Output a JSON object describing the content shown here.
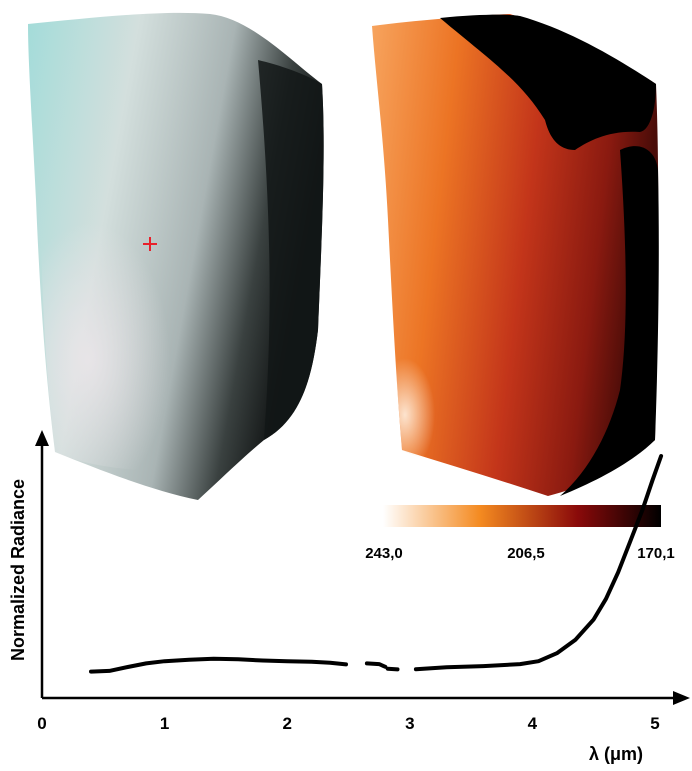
{
  "chart_data": {
    "type": "line",
    "xlabel": "λ (μm)",
    "ylabel": "Normalized Radiance",
    "xlim": [
      0,
      5.2
    ],
    "ylim": [
      0,
      1.0
    ],
    "x_ticks": [
      "0",
      "1",
      "2",
      "3",
      "4",
      "5"
    ],
    "grid": false,
    "series": [
      {
        "segments": [
          [
            [
              0.4,
              0.109
            ],
            [
              0.55,
              0.112
            ],
            [
              0.7,
              0.128
            ],
            [
              0.85,
              0.143
            ],
            [
              1.0,
              0.152
            ],
            [
              1.2,
              0.158
            ],
            [
              1.4,
              0.162
            ],
            [
              1.6,
              0.16
            ],
            [
              1.8,
              0.155
            ],
            [
              2.0,
              0.152
            ],
            [
              2.2,
              0.15
            ],
            [
              2.35,
              0.146
            ],
            [
              2.48,
              0.139
            ]
          ],
          [
            [
              2.65,
              0.143
            ],
            [
              2.75,
              0.14
            ],
            [
              2.8,
              0.129
            ]
          ],
          [
            [
              2.82,
              0.121
            ],
            [
              2.9,
              0.118
            ]
          ],
          [
            [
              3.05,
              0.119
            ],
            [
              3.3,
              0.127
            ],
            [
              3.6,
              0.132
            ],
            [
              3.9,
              0.14
            ],
            [
              4.05,
              0.152
            ],
            [
              4.2,
              0.185
            ],
            [
              4.35,
              0.24
            ],
            [
              4.5,
              0.325
            ],
            [
              4.6,
              0.41
            ],
            [
              4.7,
              0.52
            ],
            [
              4.8,
              0.65
            ],
            [
              4.9,
              0.78
            ],
            [
              4.98,
              0.9
            ],
            [
              5.05,
              1.0
            ]
          ]
        ]
      }
    ],
    "colorbar": {
      "tick_labels": [
        "243,0",
        "206,5",
        "170,1"
      ],
      "colors": [
        "#ffffff",
        "#f48a20",
        "#8a0a0a",
        "#000000"
      ]
    }
  },
  "colors": {
    "line": "#000000",
    "marker": "#e8202a",
    "left_image": [
      "#8fd4d2",
      "#c7d6d4",
      "#1c2020"
    ],
    "right_image": [
      "#fbe7d4",
      "#ee7a24",
      "#b8311a",
      "#000000"
    ]
  }
}
